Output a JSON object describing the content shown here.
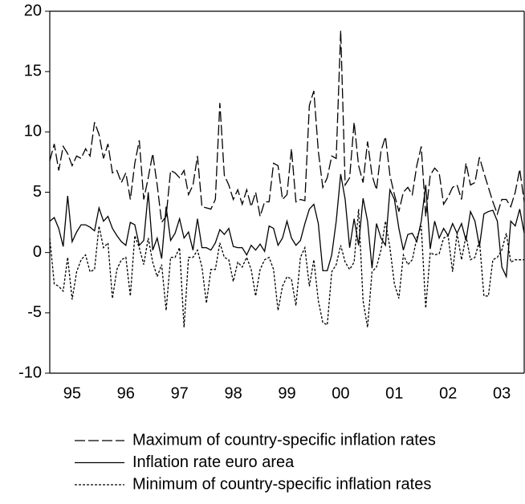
{
  "chart_data": {
    "type": "line",
    "categories": [
      null,
      null,
      null,
      null,
      null,
      "95",
      null,
      null,
      null,
      null,
      null,
      null,
      null,
      null,
      null,
      null,
      null,
      "96",
      null,
      null,
      null,
      null,
      null,
      null,
      null,
      null,
      null,
      null,
      null,
      "97",
      null,
      null,
      null,
      null,
      null,
      null,
      null,
      null,
      null,
      null,
      null,
      "98",
      null,
      null,
      null,
      null,
      null,
      null,
      null,
      null,
      null,
      null,
      null,
      "99",
      null,
      null,
      null,
      null,
      null,
      null,
      null,
      null,
      null,
      null,
      null,
      "00",
      null,
      null,
      null,
      null,
      null,
      null,
      null,
      null,
      null,
      null,
      null,
      "01",
      null,
      null,
      null,
      null,
      null,
      null,
      null,
      null,
      null,
      null,
      null,
      "02",
      null,
      null,
      null,
      null,
      null,
      null,
      null,
      null,
      null,
      null,
      null,
      "03",
      null,
      null,
      null,
      null,
      null
    ],
    "series": [
      {
        "name": "Maximum of country-specific inflation rates",
        "color": "#000000",
        "dash": "long",
        "values": [
          7.6,
          9.0,
          6.8,
          8.8,
          8.2,
          7.2,
          8.0,
          7.8,
          8.6,
          8.0,
          10.8,
          9.8,
          7.8,
          9.0,
          6.6,
          6.8,
          5.8,
          6.6,
          4.4,
          7.4,
          9.3,
          4.4,
          6.2,
          8.2,
          5.6,
          2.5,
          3.0,
          6.8,
          6.6,
          6.2,
          6.8,
          4.8,
          5.6,
          8.0,
          3.8,
          3.7,
          3.6,
          4.4,
          12.4,
          6.4,
          5.6,
          4.4,
          5.2,
          4.0,
          5.2,
          3.8,
          5.0,
          3.0,
          4.2,
          4.2,
          7.4,
          7.2,
          4.4,
          4.8,
          8.6,
          4.2,
          4.4,
          4.3,
          12.2,
          13.4,
          8.4,
          5.4,
          6.2,
          8.0,
          7.8,
          18.4,
          5.6,
          6.2,
          10.8,
          7.2,
          5.8,
          9.2,
          6.4,
          5.2,
          8.4,
          9.6,
          6.4,
          4.8,
          3.4,
          5.0,
          5.4,
          4.8,
          7.2,
          8.8,
          3.0,
          6.4,
          7.0,
          6.6,
          4.0,
          4.6,
          5.4,
          5.6,
          4.4,
          7.4,
          5.6,
          5.8,
          7.9,
          6.6,
          5.4,
          4.2,
          3.2,
          4.4,
          4.4,
          3.8,
          5.0,
          6.9,
          4.2
        ]
      },
      {
        "name": "Inflation rate euro area",
        "color": "#000000",
        "dash": "solid",
        "values": [
          2.6,
          2.9,
          2.0,
          0.5,
          4.7,
          0.9,
          1.7,
          2.3,
          2.3,
          2.1,
          1.8,
          3.7,
          2.6,
          3.0,
          2.0,
          1.4,
          0.9,
          0.6,
          2.5,
          2.3,
          0.6,
          1.0,
          5.0,
          0.2,
          1.2,
          -0.5,
          3.8,
          1.0,
          1.6,
          2.8,
          1.2,
          1.7,
          0.2,
          2.8,
          0.4,
          0.4,
          0.2,
          0.8,
          1.9,
          1.5,
          2.0,
          0.5,
          0.4,
          0.4,
          -0.2,
          0.6,
          0.2,
          0.7,
          0.1,
          2.2,
          2.0,
          0.6,
          1.2,
          2.6,
          1.2,
          0.6,
          1.0,
          2.4,
          3.6,
          4.0,
          2.4,
          -1.5,
          -1.5,
          -0.2,
          2.6,
          6.5,
          4.4,
          0.4,
          2.8,
          0.6,
          4.5,
          2.6,
          -1.3,
          2.4,
          1.2,
          0.6,
          5.2,
          4.4,
          2.0,
          0.2,
          1.5,
          1.6,
          0.9,
          2.6,
          5.6,
          0.3,
          2.6,
          1.2,
          2.0,
          1.4,
          2.4,
          1.6,
          2.4,
          1.0,
          3.4,
          2.6,
          0.5,
          3.2,
          3.4,
          3.5,
          2.6,
          -1.2,
          -2.0,
          2.6,
          2.2,
          3.6,
          1.6
        ]
      },
      {
        "name": "Minimum of country-specific inflation rates",
        "color": "#000000",
        "dash": "short",
        "values": [
          1.2,
          -2.6,
          -2.8,
          -3.2,
          -0.4,
          -3.9,
          -1.6,
          -0.6,
          -0.2,
          -1.6,
          -1.4,
          2.2,
          0.4,
          0.8,
          -3.8,
          -1.4,
          -0.6,
          -0.4,
          -3.6,
          1.4,
          0.4,
          -1.0,
          1.2,
          -0.8,
          -2.0,
          -1.0,
          -4.8,
          -0.4,
          -0.4,
          0.4,
          -6.2,
          -0.4,
          -0.4,
          0.2,
          -1.2,
          -4.2,
          -1.4,
          -1.4,
          0.8,
          -0.4,
          -0.6,
          -2.4,
          -0.8,
          -1.2,
          -0.4,
          -1.4,
          -3.6,
          -1.4,
          -0.6,
          -0.4,
          -1.4,
          -4.8,
          -2.8,
          -2.0,
          -2.2,
          -4.4,
          -0.4,
          0.4,
          -2.8,
          -0.6,
          -4.0,
          -5.8,
          -6.0,
          -1.6,
          -1.0,
          0.6,
          -0.8,
          -1.4,
          -0.8,
          3.6,
          -4.0,
          -6.2,
          -1.6,
          -1.2,
          0.2,
          2.6,
          0.4,
          -2.6,
          -3.8,
          -0.2,
          -1.0,
          -0.6,
          1.2,
          2.2,
          -4.6,
          0.0,
          -0.2,
          -0.1,
          1.2,
          1.4,
          -1.6,
          1.6,
          -0.6,
          1.4,
          -0.6,
          -0.4,
          1.0,
          -3.6,
          -3.6,
          -0.6,
          -0.4,
          0.2,
          1.6,
          -0.8,
          -0.6,
          -0.6,
          -0.6
        ]
      }
    ],
    "ylim": [
      -10,
      20
    ],
    "yticks": [
      -10,
      -5,
      0,
      5,
      10,
      15,
      20
    ],
    "grid": false
  }
}
